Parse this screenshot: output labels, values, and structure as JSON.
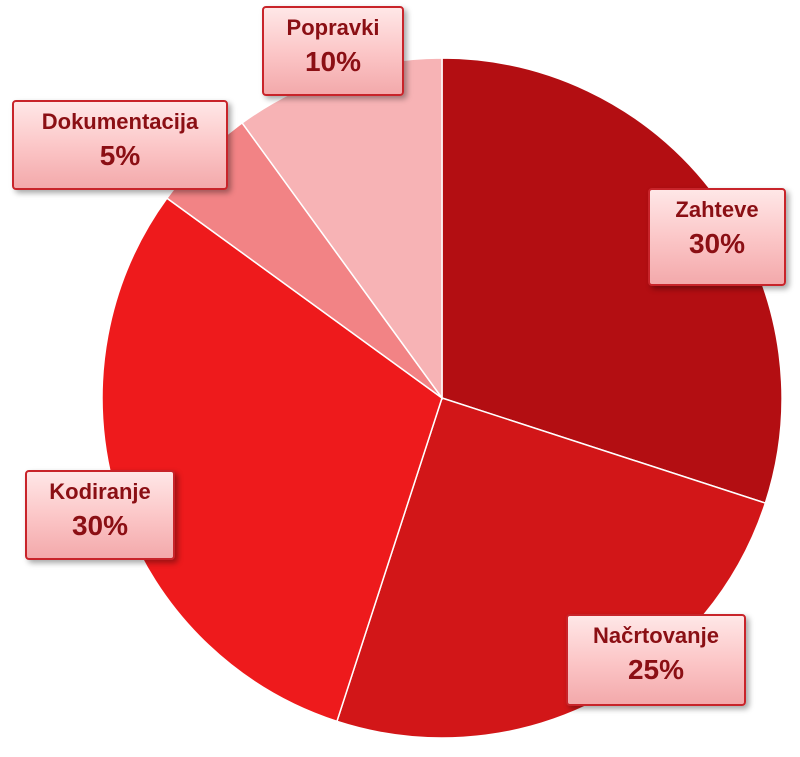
{
  "chart_data": {
    "type": "pie",
    "title": "",
    "slices": [
      {
        "label": "Zahteve",
        "value": 30,
        "value_label": "30%",
        "color": "#b30e12"
      },
      {
        "label": "Načrtovanje",
        "value": 25,
        "value_label": "25%",
        "color": "#d21618"
      },
      {
        "label": "Kodiranje",
        "value": 30,
        "value_label": "30%",
        "color": "#ee1a1c"
      },
      {
        "label": "Dokumentacija",
        "value": 5,
        "value_label": "5%",
        "color": "#f28385"
      },
      {
        "label": "Popravki",
        "value": 10,
        "value_label": "10%",
        "color": "#f7b3b5"
      }
    ],
    "legend": "none",
    "start_angle": "12 o'clock",
    "direction": "clockwise"
  }
}
